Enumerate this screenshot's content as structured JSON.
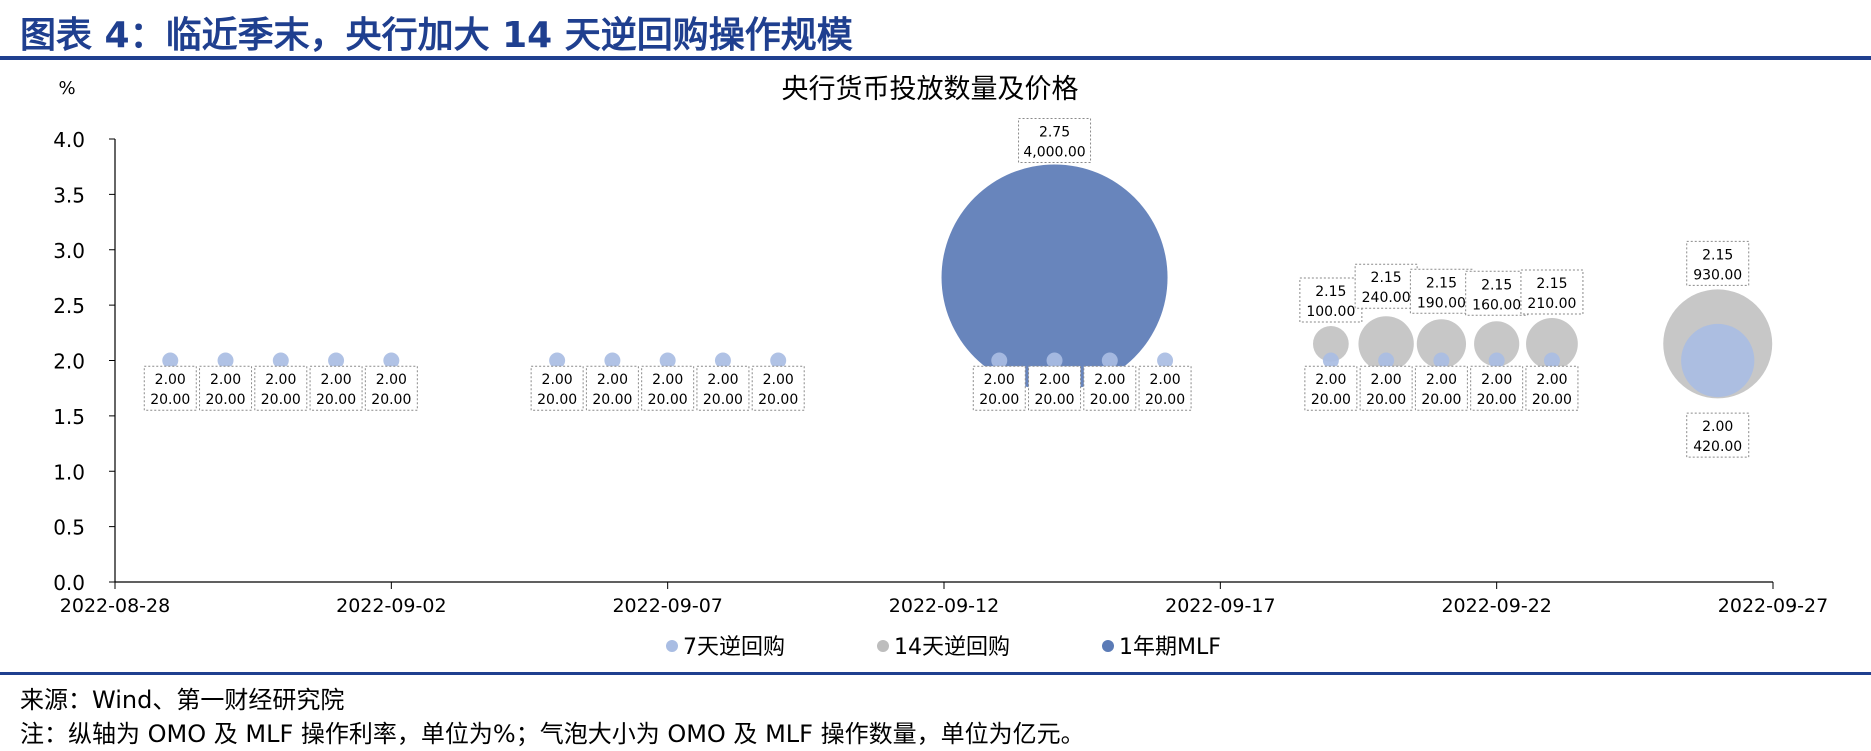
{
  "figure_title": "图表 4：临近季末，央行加大 14 天逆回购操作规模",
  "source": "来源：Wind、第一财经研究院",
  "note": "注：纵轴为 OMO 及 MLF 操作利率，单位为%；气泡大小为 OMO 及 MLF 操作数量，单位为亿元。",
  "chart_data": {
    "type": "bubble",
    "title": "央行货币投放数量及价格",
    "ylabel": "%",
    "ylim": [
      0,
      4
    ],
    "yticks": [
      "0.0",
      "0.5",
      "1.0",
      "1.5",
      "2.0",
      "2.5",
      "3.0",
      "3.5",
      "4.0"
    ],
    "xlim": [
      "2022-08-28",
      "2022-09-27"
    ],
    "xticks": [
      "2022-08-28",
      "2022-09-02",
      "2022-09-07",
      "2022-09-12",
      "2022-09-17",
      "2022-09-22",
      "2022-09-27"
    ],
    "legend_position": "bottom",
    "series": [
      {
        "name": "7天逆回购",
        "color": "#a9bde3",
        "points": [
          {
            "date": "2022-08-29",
            "rate": 2.0,
            "amount": 20.0,
            "label": [
              "2.00",
              "20.00"
            ]
          },
          {
            "date": "2022-08-30",
            "rate": 2.0,
            "amount": 20.0,
            "label": [
              "2.00",
              "20.00"
            ]
          },
          {
            "date": "2022-08-31",
            "rate": 2.0,
            "amount": 20.0,
            "label": [
              "2.00",
              "20.00"
            ]
          },
          {
            "date": "2022-09-01",
            "rate": 2.0,
            "amount": 20.0,
            "label": [
              "2.00",
              "20.00"
            ]
          },
          {
            "date": "2022-09-02",
            "rate": 2.0,
            "amount": 20.0,
            "label": [
              "2.00",
              "20.00"
            ]
          },
          {
            "date": "2022-09-05",
            "rate": 2.0,
            "amount": 20.0,
            "label": [
              "2.00",
              "20.00"
            ]
          },
          {
            "date": "2022-09-06",
            "rate": 2.0,
            "amount": 20.0,
            "label": [
              "2.00",
              "20.00"
            ]
          },
          {
            "date": "2022-09-07",
            "rate": 2.0,
            "amount": 20.0,
            "label": [
              "2.00",
              "20.00"
            ]
          },
          {
            "date": "2022-09-08",
            "rate": 2.0,
            "amount": 20.0,
            "label": [
              "2.00",
              "20.00"
            ]
          },
          {
            "date": "2022-09-09",
            "rate": 2.0,
            "amount": 20.0,
            "label": [
              "2.00",
              "20.00"
            ]
          },
          {
            "date": "2022-09-13",
            "rate": 2.0,
            "amount": 20.0,
            "label": [
              "2.00",
              "20.00"
            ]
          },
          {
            "date": "2022-09-14",
            "rate": 2.0,
            "amount": 20.0,
            "label": [
              "2.00",
              "20.00"
            ]
          },
          {
            "date": "2022-09-15",
            "rate": 2.0,
            "amount": 20.0,
            "label": [
              "2.00",
              "20.00"
            ]
          },
          {
            "date": "2022-09-16",
            "rate": 2.0,
            "amount": 20.0,
            "label": [
              "2.00",
              "20.00"
            ]
          },
          {
            "date": "2022-09-19",
            "rate": 2.0,
            "amount": 20.0,
            "label": [
              "2.00",
              "20.00"
            ]
          },
          {
            "date": "2022-09-20",
            "rate": 2.0,
            "amount": 20.0,
            "label": [
              "2.00",
              "20.00"
            ]
          },
          {
            "date": "2022-09-21",
            "rate": 2.0,
            "amount": 20.0,
            "label": [
              "2.00",
              "20.00"
            ]
          },
          {
            "date": "2022-09-22",
            "rate": 2.0,
            "amount": 20.0,
            "label": [
              "2.00",
              "20.00"
            ]
          },
          {
            "date": "2022-09-23",
            "rate": 2.0,
            "amount": 20.0,
            "label": [
              "2.00",
              "20.00"
            ]
          },
          {
            "date": "2022-09-26",
            "rate": 2.0,
            "amount": 420.0,
            "label": [
              "2.00",
              "420.00"
            ]
          }
        ]
      },
      {
        "name": "14天逆回购",
        "color": "#bdbdbd",
        "points": [
          {
            "date": "2022-09-19",
            "rate": 2.15,
            "amount": 100.0,
            "label": [
              "2.15",
              "100.00"
            ]
          },
          {
            "date": "2022-09-20",
            "rate": 2.15,
            "amount": 240.0,
            "label": [
              "2.15",
              "240.00"
            ]
          },
          {
            "date": "2022-09-21",
            "rate": 2.15,
            "amount": 190.0,
            "label": [
              "2.15",
              "190.00"
            ]
          },
          {
            "date": "2022-09-22",
            "rate": 2.15,
            "amount": 160.0,
            "label": [
              "2.15",
              "160.00"
            ]
          },
          {
            "date": "2022-09-23",
            "rate": 2.15,
            "amount": 210.0,
            "label": [
              "2.15",
              "210.00"
            ]
          },
          {
            "date": "2022-09-26",
            "rate": 2.15,
            "amount": 930.0,
            "label": [
              "2.15",
              "930.00"
            ]
          }
        ]
      },
      {
        "name": "1年期MLF",
        "color": "#5b7bb6",
        "points": [
          {
            "date": "2022-09-14",
            "rate": 2.75,
            "amount": 4000.0,
            "label": [
              "2.75",
              "4,000.00"
            ]
          }
        ]
      }
    ]
  }
}
